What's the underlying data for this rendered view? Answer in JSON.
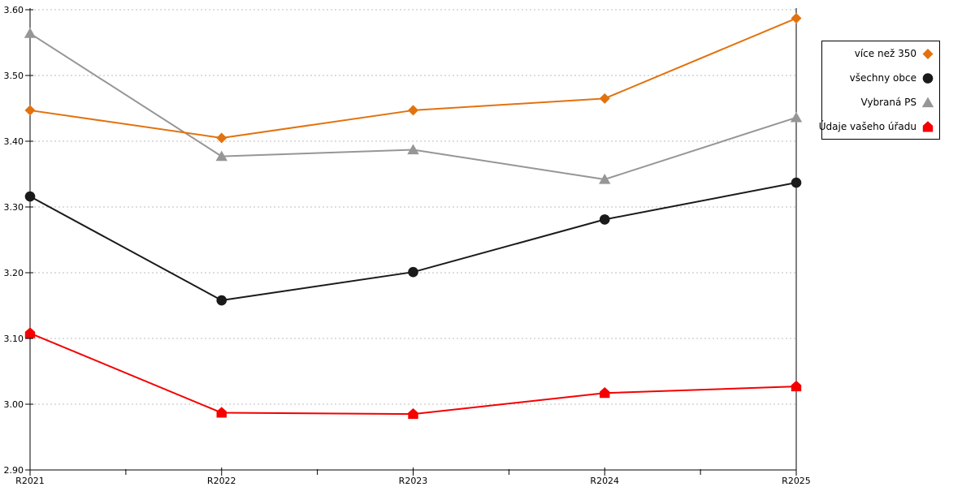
{
  "chart_data": {
    "type": "line",
    "title": "",
    "xlabel": "",
    "ylabel": "",
    "categories": [
      "R2021",
      "R2022",
      "R2023",
      "R2024",
      "R2025"
    ],
    "series": [
      {
        "name": "více než 350",
        "marker": "diamond",
        "color": "#E2720E",
        "values": [
          3.447,
          3.405,
          3.447,
          3.465,
          3.587
        ]
      },
      {
        "name": "všechny obce",
        "marker": "circle",
        "color": "#1A1A1A",
        "values": [
          3.316,
          3.158,
          3.201,
          3.281,
          3.337
        ]
      },
      {
        "name": "Vybraná PS",
        "marker": "triangle",
        "color": "#969696",
        "values": [
          3.564,
          3.377,
          3.387,
          3.342,
          3.436
        ]
      },
      {
        "name": "Údaje vašeho úřadu",
        "marker": "pentagon",
        "color": "#F40000",
        "values": [
          3.108,
          2.987,
          2.985,
          3.017,
          3.027
        ]
      }
    ],
    "ylim": [
      2.9,
      3.6
    ],
    "ytick_labels": [
      "2.90",
      "3.00",
      "3.10",
      "3.20",
      "3.30",
      "3.40",
      "3.50",
      "3.60"
    ],
    "grid": "horizontal dotted",
    "gridline_color": "#BDBDBD",
    "axis_color": "#000000",
    "legend_position": "top-right",
    "legend_border_color": "#000000"
  }
}
